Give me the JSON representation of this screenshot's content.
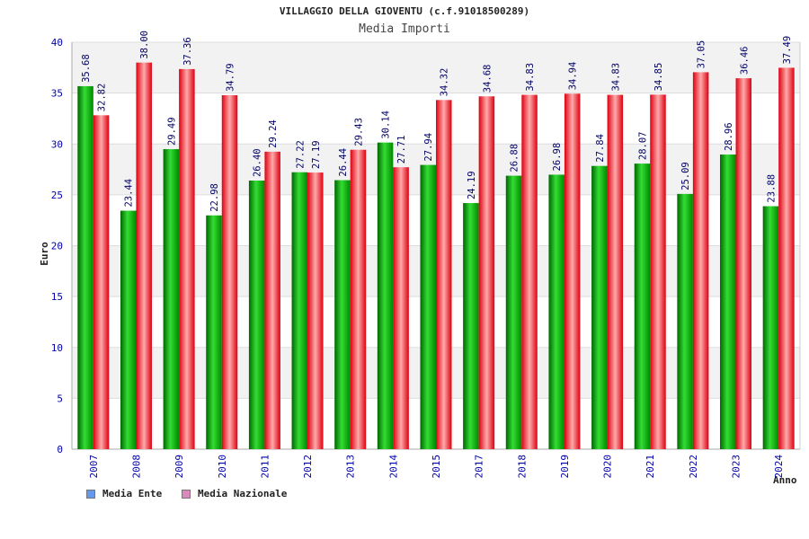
{
  "chart_data": {
    "type": "bar",
    "title": "VILLAGGIO DELLA GIOVENTU (c.f.91018500289)",
    "subtitle": "Media Importi",
    "xlabel": "Anno",
    "ylabel": "Euro",
    "ylim": [
      0,
      40
    ],
    "yticks": [
      0,
      5,
      10,
      15,
      20,
      25,
      30,
      35,
      40
    ],
    "categories": [
      "2007",
      "2008",
      "2009",
      "2010",
      "2011",
      "2012",
      "2013",
      "2014",
      "2015",
      "2017",
      "2018",
      "2019",
      "2020",
      "2021",
      "2022",
      "2023",
      "2024"
    ],
    "series": [
      {
        "name": "Media Ente",
        "color": "#00aa00",
        "legend_color": "#6699ee",
        "values": [
          35.68,
          23.44,
          29.49,
          22.98,
          26.4,
          27.22,
          26.44,
          30.14,
          27.94,
          24.19,
          26.88,
          26.98,
          27.84,
          28.07,
          25.09,
          28.96,
          23.88
        ],
        "labels": [
          "35.68",
          "23.44",
          "29.49",
          "22.98",
          "26.40",
          "27.22",
          "26.44",
          "30.14",
          "27.94",
          "24.19",
          "26.88",
          "26.98",
          "27.84",
          "28.07",
          "25.09",
          "28.96",
          "23.88"
        ]
      },
      {
        "name": "Media Nazionale",
        "color": "#ee1122",
        "legend_color": "#dd88bb",
        "values": [
          32.82,
          38.0,
          37.36,
          34.79,
          29.24,
          27.19,
          29.43,
          27.71,
          34.32,
          34.68,
          34.83,
          34.94,
          34.83,
          34.85,
          37.05,
          36.46,
          37.49
        ],
        "labels": [
          "32.82",
          "38.00",
          "37.36",
          "34.79",
          "29.24",
          "27.19",
          "29.43",
          "27.71",
          "34.32",
          "34.68",
          "34.83",
          "34.94",
          "34.83",
          "34.85",
          "37.05",
          "36.46",
          "37.49"
        ]
      }
    ]
  }
}
